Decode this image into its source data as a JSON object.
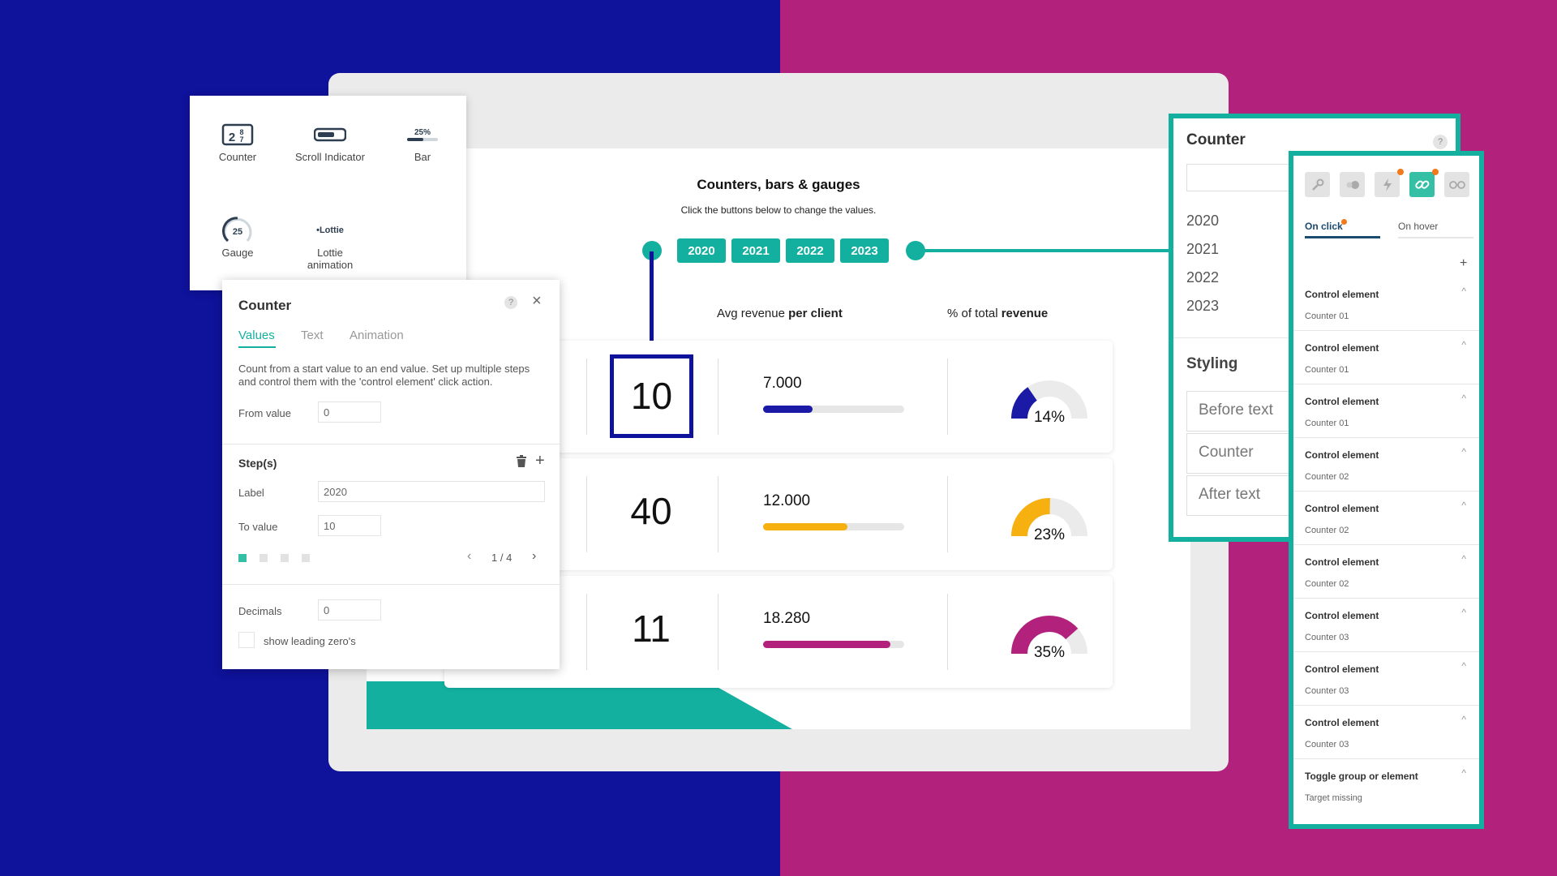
{
  "canvas": {
    "title": "Counters, bars & gauges",
    "subtitle": "Click the buttons below to change the values.",
    "years": [
      "2020",
      "2021",
      "2022",
      "2023"
    ],
    "col_avg_prefix": "Avg revenue ",
    "col_avg_bold": "per client",
    "col_pct_prefix": "% of total ",
    "col_pct_bold": "revenue",
    "rows": [
      {
        "count": "10",
        "revenue": "7.000",
        "bar_fraction": 0.35,
        "pct": "14%",
        "gauge_fraction": 0.14,
        "color": "#1a1aa6"
      },
      {
        "count": "40",
        "revenue": "12.000",
        "bar_fraction": 0.6,
        "pct": "23%",
        "gauge_fraction": 0.23,
        "color": "#f6b010"
      },
      {
        "count": "11",
        "revenue": "18.280",
        "bar_fraction": 0.9,
        "pct": "35%",
        "gauge_fraction": 0.35,
        "color": "#b2227d"
      }
    ]
  },
  "widgets": [
    {
      "label": "Counter",
      "icon": "counter-icon"
    },
    {
      "label": "Scroll Indicator",
      "icon": "scroll-indicator-icon"
    },
    {
      "label": "Bar",
      "icon": "bar-icon",
      "icon_text": "25%"
    },
    {
      "label": "Gauge",
      "icon": "gauge-icon",
      "icon_text": "25"
    },
    {
      "label": "Lottie animation",
      "icon": "lottie-icon",
      "icon_text": "•Lottie"
    }
  ],
  "counter_panel": {
    "title": "Counter",
    "help": "?",
    "close": "×",
    "tabs": [
      "Values",
      "Text",
      "Animation"
    ],
    "description": "Count from a start value to an end value. Set up multiple steps and control them with the 'control element' click action.",
    "from_label": "From value",
    "from_value": "0",
    "steps_title": "Step(s)",
    "label_label": "Label",
    "label_value": "2020",
    "to_label": "To value",
    "to_value": "10",
    "pager": "1 / 4",
    "decimals_label": "Decimals",
    "decimals_value": "0",
    "leading_zero_label": "show leading zero's"
  },
  "right_panel": {
    "title": "Counter",
    "help": "?",
    "years": [
      "2020",
      "2021",
      "2022",
      "2023"
    ],
    "styling_title": "Styling",
    "boxes": [
      "Before text",
      "Counter",
      "After text"
    ]
  },
  "actions_panel": {
    "tabs": [
      "On click",
      "On hover"
    ],
    "add": "+",
    "items": [
      {
        "title": "Control element",
        "sub": "Counter 01"
      },
      {
        "title": "Control element",
        "sub": "Counter 01"
      },
      {
        "title": "Control element",
        "sub": "Counter 01"
      },
      {
        "title": "Control element",
        "sub": "Counter 02"
      },
      {
        "title": "Control element",
        "sub": "Counter 02"
      },
      {
        "title": "Control element",
        "sub": "Counter 02"
      },
      {
        "title": "Control element",
        "sub": "Counter 03"
      },
      {
        "title": "Control element",
        "sub": "Counter 03"
      },
      {
        "title": "Control element",
        "sub": "Counter 03"
      },
      {
        "title": "Toggle group or element",
        "sub": "Target missing"
      }
    ]
  },
  "colors": {
    "teal": "#13b0a0",
    "navy": "#0f129b",
    "magenta": "#b2227d",
    "orange": "#f27a1a"
  }
}
